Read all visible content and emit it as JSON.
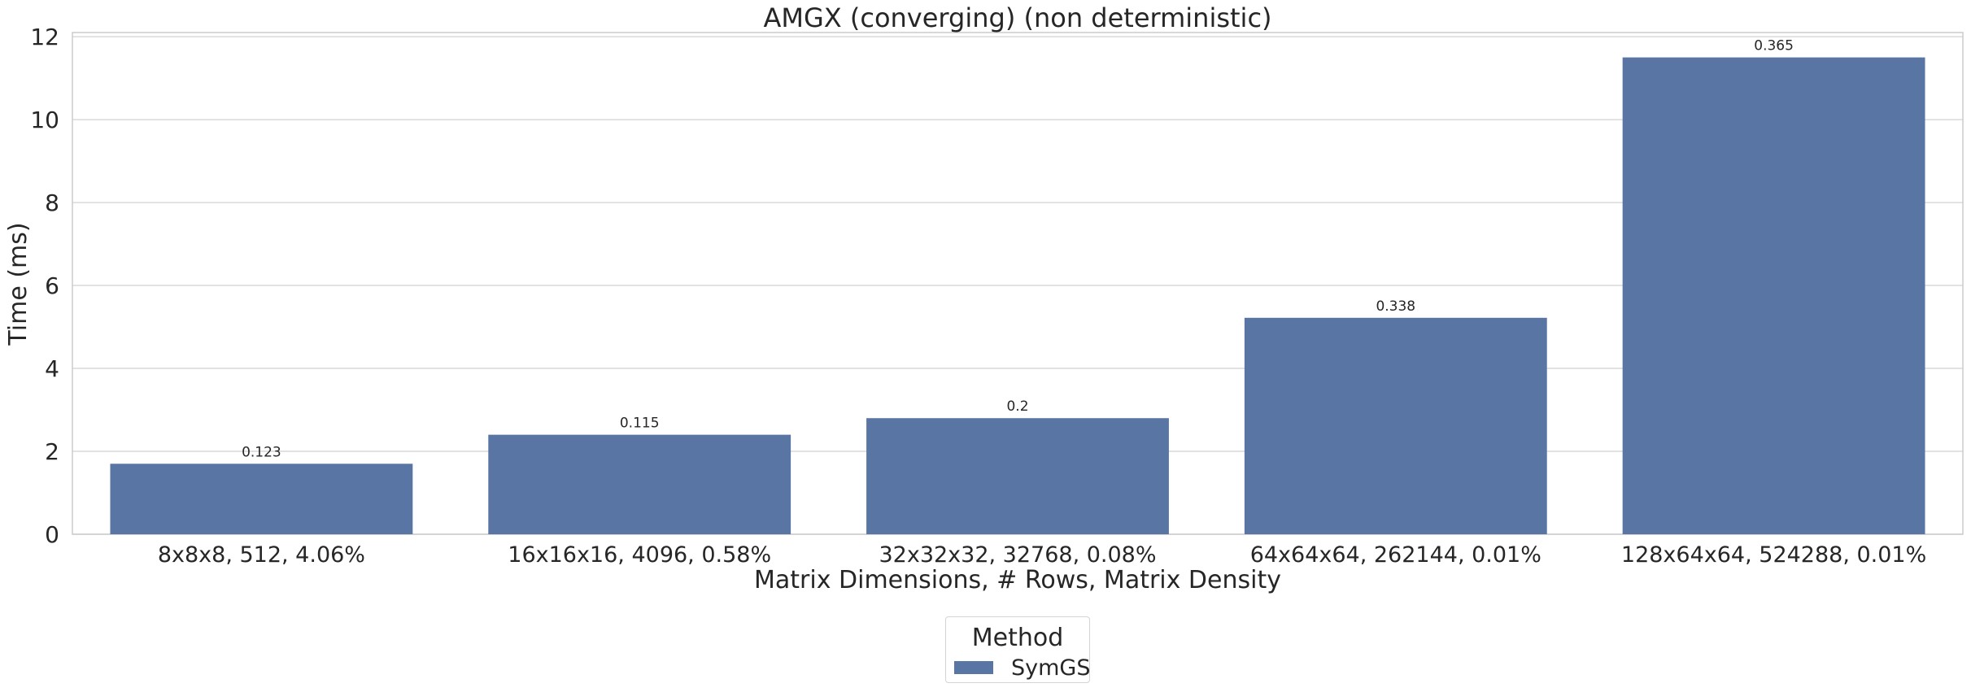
{
  "chart_data": {
    "type": "bar",
    "title": "AMGX (converging) (non deterministic)",
    "xlabel": "Matrix Dimensions, # Rows, Matrix Density",
    "ylabel": "Time (ms)",
    "ylim": [
      0,
      12.1
    ],
    "yticks": [
      0,
      2,
      4,
      6,
      8,
      10,
      12
    ],
    "grid": true,
    "categories": [
      "8x8x8, 512, 4.06%",
      "16x16x16, 4096, 0.58%",
      "32x32x32, 32768, 0.08%",
      "64x64x64, 262144, 0.01%",
      "128x64x64, 524288, 0.01%"
    ],
    "series": [
      {
        "name": "SymGS",
        "color": "#5975a4",
        "values": [
          1.7,
          2.4,
          2.8,
          5.22,
          11.5
        ],
        "data_labels": [
          "0.123",
          "0.115",
          "0.2",
          "0.338",
          "0.365"
        ]
      }
    ],
    "legend": {
      "title": "Method",
      "placement": "bottom-center"
    }
  }
}
